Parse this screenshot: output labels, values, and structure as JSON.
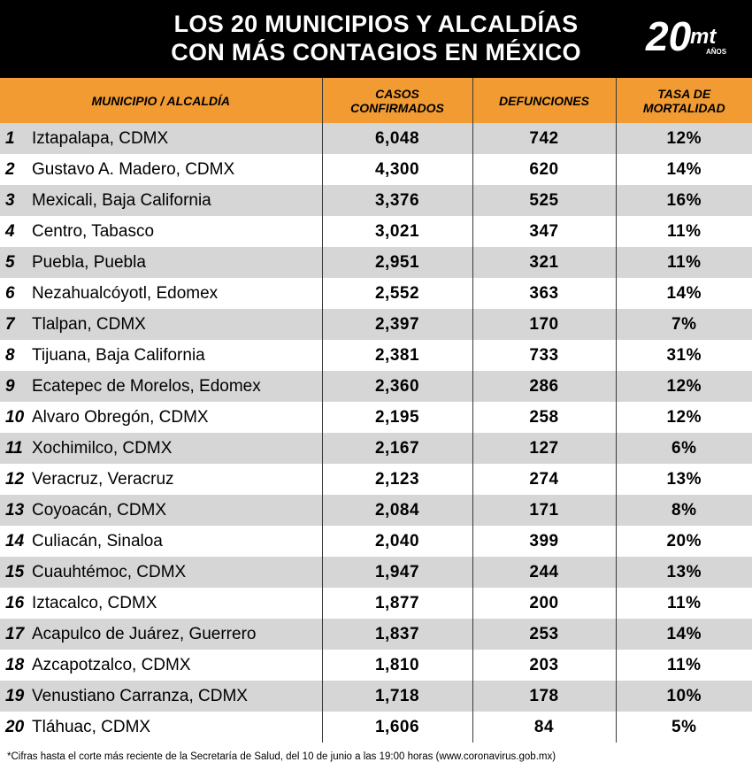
{
  "header": {
    "title_line1": "LOS 20 MUNICIPIOS Y ALCALDÍAS",
    "title_line2": "CON MÁS CONTAGIOS EN MÉXICO",
    "logo_number": "20",
    "logo_brand": "mt",
    "logo_years": "AÑOS"
  },
  "chart_data": {
    "type": "table",
    "columns": [
      "MUNICIPIO / ALCALDÍA",
      "CASOS CONFIRMADOS",
      "DEFUNCIONES",
      "TASA DE MORTALIDAD"
    ],
    "rows": [
      {
        "rank": "1",
        "name": "Iztapalapa, CDMX",
        "cases": "6,048",
        "deaths": "742",
        "rate": "12%"
      },
      {
        "rank": "2",
        "name": "Gustavo A. Madero, CDMX",
        "cases": "4,300",
        "deaths": "620",
        "rate": "14%"
      },
      {
        "rank": "3",
        "name": "Mexicali, Baja California",
        "cases": "3,376",
        "deaths": "525",
        "rate": "16%"
      },
      {
        "rank": "4",
        "name": "Centro, Tabasco",
        "cases": "3,021",
        "deaths": "347",
        "rate": "11%"
      },
      {
        "rank": "5",
        "name": "Puebla, Puebla",
        "cases": "2,951",
        "deaths": "321",
        "rate": "11%"
      },
      {
        "rank": "6",
        "name": "Nezahualcóyotl, Edomex",
        "cases": "2,552",
        "deaths": "363",
        "rate": "14%"
      },
      {
        "rank": "7",
        "name": "Tlalpan, CDMX",
        "cases": "2,397",
        "deaths": "170",
        "rate": "7%"
      },
      {
        "rank": "8",
        "name": "Tijuana, Baja California",
        "cases": "2,381",
        "deaths": "733",
        "rate": "31%"
      },
      {
        "rank": "9",
        "name": "Ecatepec de Morelos, Edomex",
        "cases": "2,360",
        "deaths": "286",
        "rate": "12%"
      },
      {
        "rank": "10",
        "name": "Alvaro Obregón, CDMX",
        "cases": "2,195",
        "deaths": "258",
        "rate": "12%"
      },
      {
        "rank": "11",
        "name": "Xochimilco, CDMX",
        "cases": "2,167",
        "deaths": "127",
        "rate": "6%"
      },
      {
        "rank": "12",
        "name": "Veracruz, Veracruz",
        "cases": "2,123",
        "deaths": "274",
        "rate": "13%"
      },
      {
        "rank": "13",
        "name": "Coyoacán, CDMX",
        "cases": "2,084",
        "deaths": "171",
        "rate": "8%"
      },
      {
        "rank": "14",
        "name": "Culiacán, Sinaloa",
        "cases": "2,040",
        "deaths": "399",
        "rate": "20%"
      },
      {
        "rank": "15",
        "name": "Cuauhtémoc, CDMX",
        "cases": "1,947",
        "deaths": "244",
        "rate": "13%"
      },
      {
        "rank": "16",
        "name": "Iztacalco, CDMX",
        "cases": "1,877",
        "deaths": "200",
        "rate": "11%"
      },
      {
        "rank": "17",
        "name": "Acapulco de Juárez, Guerrero",
        "cases": "1,837",
        "deaths": "253",
        "rate": "14%"
      },
      {
        "rank": "18",
        "name": "Azcapotzalco, CDMX",
        "cases": "1,810",
        "deaths": "203",
        "rate": "11%"
      },
      {
        "rank": "19",
        "name": "Venustiano Carranza, CDMX",
        "cases": "1,718",
        "deaths": "178",
        "rate": "10%"
      },
      {
        "rank": "20",
        "name": "Tláhuac, CDMX",
        "cases": "1,606",
        "deaths": "84",
        "rate": "5%"
      }
    ]
  },
  "table_header": {
    "col1": "MUNICIPIO / ALCALDÍA",
    "col2_line1": "CASOS",
    "col2_line2": "CONFIRMADOS",
    "col3": "DEFUNCIONES",
    "col4_line1": "TASA DE",
    "col4_line2": "MORTALIDAD"
  },
  "footnote": "*Cifras hasta el corte más reciente de la Secretaría de Salud, del 10 de junio a las 19:00 horas (www.coronavirus.gob.mx)",
  "colors": {
    "header_bg": "#000000",
    "accent_orange": "#f19b32",
    "row_alt": "#d6d6d6"
  }
}
